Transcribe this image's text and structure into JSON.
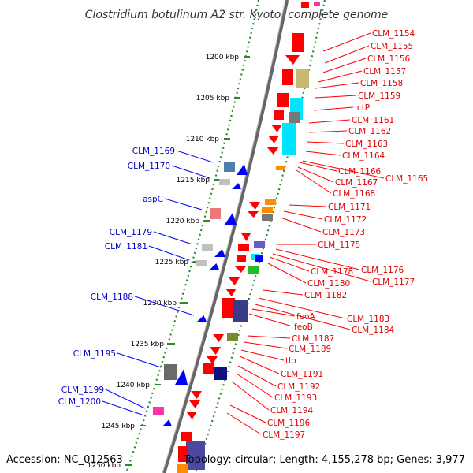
{
  "title": "Clostridium botulinum A2 str. Kyoto, complete genome",
  "footer": {
    "accession": "Accession: NC_012563",
    "topology": "Topology: circular; Length: 4,155,278 bp; Genes: 3,977"
  },
  "colors": {
    "forward_gene": "#ff0000",
    "reverse_gene": "#0000ff",
    "forward_label": "#dd0000",
    "reverse_label": "#0000cc",
    "backbone": "#888888",
    "tick": "#2a8a2a"
  },
  "ticks": [
    "1200 kbp",
    "1205 kbp",
    "1210 kbp",
    "1215 kbp",
    "1220 kbp",
    "1225 kbp",
    "1230 kbp",
    "1235 kbp",
    "1240 kbp",
    "1245 kbp",
    "1250 kbp"
  ],
  "reverse_genes": [
    "CLM_1169",
    "CLM_1170",
    "aspC",
    "CLM_1179",
    "CLM_1181",
    "CLM_1188",
    "CLM_1195",
    "CLM_1199",
    "CLM_1200"
  ],
  "forward_genes": [
    "CLM_1154",
    "CLM_1155",
    "CLM_1156",
    "CLM_1157",
    "CLM_1158",
    "CLM_1159",
    "lctP",
    "CLM_1161",
    "CLM_1162",
    "CLM_1163",
    "CLM_1164",
    "CLM_1165",
    "CLM_1166",
    "CLM_1167",
    "CLM_1168",
    "CLM_1171",
    "CLM_1172",
    "CLM_1173",
    "CLM_1175",
    "CLM_1176",
    "CLM_1177",
    "CLM_1178",
    "CLM_1180",
    "CLM_1182",
    "CLM_1183",
    "CLM_1184",
    "feoA",
    "feoB",
    "CLM_1187",
    "CLM_1189",
    "tlp",
    "CLM_1191",
    "CLM_1192",
    "CLM_1193",
    "CLM_1194",
    "CLM_1196",
    "CLM_1197"
  ]
}
